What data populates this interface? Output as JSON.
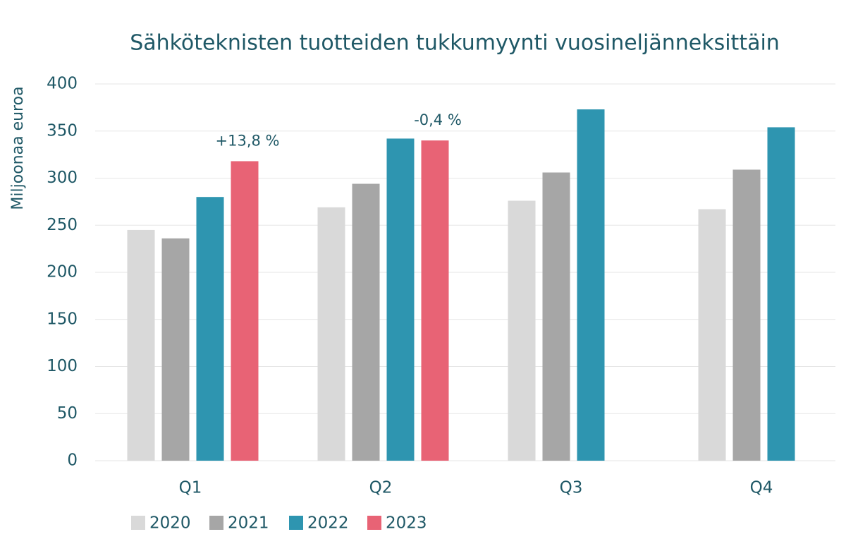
{
  "chart_data": {
    "type": "bar",
    "title": "Sähköteknisten tuotteiden tukkumyynti vuosineljänneksittäin",
    "y_label": "Miljoonaa euroa",
    "categories": [
      "Q1",
      "Q2",
      "Q3",
      "Q4"
    ],
    "series": [
      {
        "name": "2020",
        "color": "#d9d9d9",
        "values": [
          245,
          269,
          276,
          267
        ]
      },
      {
        "name": "2021",
        "color": "#a6a6a6",
        "values": [
          236,
          294,
          306,
          309
        ]
      },
      {
        "name": "2022",
        "color": "#2e95b0",
        "values": [
          280,
          342,
          373,
          354
        ]
      },
      {
        "name": "2023",
        "color": "#e86375",
        "values": [
          318,
          340,
          null,
          null
        ]
      }
    ],
    "annotations": [
      {
        "text": "+13,8 %",
        "category": "Q1"
      },
      {
        "text": "-0,4 %",
        "category": "Q2"
      }
    ],
    "ylim": [
      0,
      400
    ],
    "yticks": [
      0,
      50,
      100,
      150,
      200,
      250,
      300,
      350,
      400
    ],
    "grid": true,
    "legend": "bottom"
  }
}
